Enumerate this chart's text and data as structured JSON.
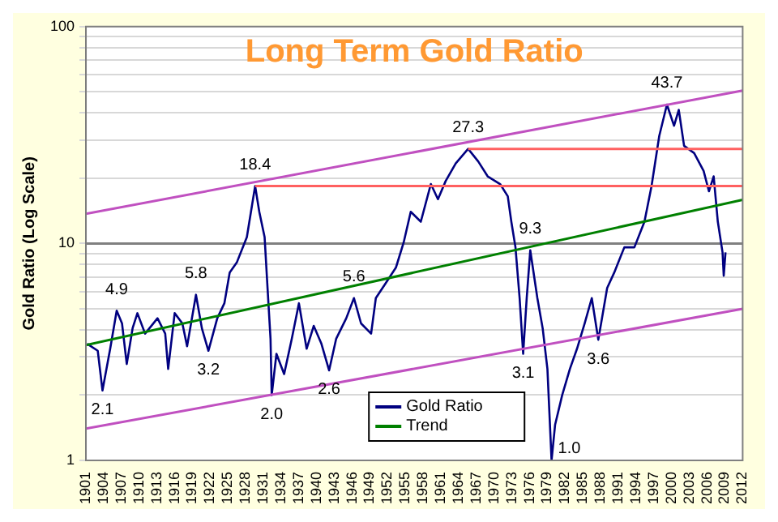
{
  "chart_data": {
    "type": "line",
    "title": "Long Term Gold Ratio",
    "ylabel": "Gold Ratio (Log Scale)",
    "log": "y",
    "xlim": [
      1901,
      2012
    ],
    "xticks": [
      1901,
      1904,
      1907,
      1910,
      1913,
      1916,
      1919,
      1922,
      1925,
      1928,
      1931,
      1934,
      1937,
      1940,
      1943,
      1946,
      1949,
      1952,
      1955,
      1958,
      1961,
      1964,
      1967,
      1970,
      1973,
      1976,
      1979,
      1982,
      1985,
      1988,
      1991,
      1994,
      1997,
      2000,
      2003,
      2006,
      2009,
      2012
    ],
    "ylim": [
      1,
      100
    ],
    "yticks": [
      1,
      {
        "value": 2,
        "label": null
      },
      {
        "value": 3,
        "label": null
      },
      {
        "value": 4,
        "label": null
      },
      {
        "value": 5,
        "label": null
      },
      {
        "value": 6,
        "label": null
      },
      {
        "value": 7,
        "label": null
      },
      {
        "value": 8,
        "label": null
      },
      {
        "value": 9,
        "label": null
      },
      10,
      {
        "value": 20,
        "label": null
      },
      {
        "value": 30,
        "label": null
      },
      {
        "value": 40,
        "label": null
      },
      {
        "value": 50,
        "label": null
      },
      {
        "value": 60,
        "label": null
      },
      {
        "value": 70,
        "label": null
      },
      {
        "value": 80,
        "label": null
      },
      {
        "value": 90,
        "label": null
      },
      100
    ],
    "grid": "y",
    "legend": "bottom",
    "marker": "none",
    "series": [
      {
        "name": "Gold Ratio",
        "color": "#000080",
        "x": [
          1901.2,
          1903,
          1903.8,
          1905.1,
          1906.2,
          1907.1,
          1907.9,
          1908.9,
          1909.7,
          1911,
          1913.1,
          1914.4,
          1914.9,
          1916,
          1917.3,
          1918.1,
          1919.6,
          1920.6,
          1921.7,
          1923.2,
          1924.4,
          1925.3,
          1926.5,
          1928.2,
          1929.6,
          1930.3,
          1931.2,
          1931.7,
          1932.2,
          1932.4,
          1933.2,
          1934.5,
          1935.8,
          1937,
          1938.3,
          1939.5,
          1940.8,
          1942.1,
          1943.3,
          1945,
          1946.3,
          1947.5,
          1949.2,
          1950,
          1951.7,
          1953.4,
          1954.7,
          1955.9,
          1957.6,
          1959.3,
          1960.5,
          1961.8,
          1963.5,
          1965.6,
          1967.3,
          1968.9,
          1971,
          1972.3,
          1972.9,
          1973.6,
          1974.3,
          1974.9,
          1975.5,
          1976.1,
          1977.3,
          1978.2,
          1979,
          1979.7,
          1980.3,
          1981.5,
          1982.8,
          1984,
          1985.3,
          1986.5,
          1987.6,
          1989.1,
          1990.3,
          1992,
          1993.7,
          1995.4,
          1996.6,
          1997.9,
          1999.2,
          2000.4,
          2001.2,
          2002.1,
          2003.8,
          2005.4,
          2006.3,
          2007.1,
          2007.8,
          2008.6,
          2008.8,
          2009.1
        ],
        "values": [
          3.45,
          3.2,
          2.1,
          3.27,
          4.9,
          4.28,
          2.78,
          4.08,
          4.77,
          3.84,
          4.52,
          3.84,
          2.64,
          4.77,
          4.28,
          3.36,
          5.8,
          4.06,
          3.2,
          4.52,
          5.3,
          7.35,
          8.17,
          10.7,
          18.4,
          14,
          10.7,
          6.2,
          3.64,
          2,
          3.1,
          2.5,
          3.64,
          5.3,
          3.27,
          4.17,
          3.45,
          2.6,
          3.64,
          4.52,
          5.6,
          4.28,
          3.84,
          5.6,
          6.58,
          7.75,
          10.1,
          14,
          12.6,
          18.8,
          16,
          19.4,
          23.4,
          27.3,
          23.9,
          20.4,
          18.8,
          16.5,
          12.6,
          9.6,
          5.6,
          3.1,
          5.6,
          9.3,
          5.6,
          4.06,
          2.64,
          1,
          1.46,
          2,
          2.64,
          3.27,
          4.28,
          5.6,
          3.6,
          6.24,
          7.35,
          9.6,
          9.6,
          12.6,
          18.4,
          31.3,
          43.7,
          34.9,
          41.3,
          28.2,
          26.1,
          21.6,
          17.4,
          20.4,
          12.6,
          9.1,
          7.1,
          9.1
        ]
      },
      {
        "name": "Trend",
        "color": "#008000",
        "x": [
          1901,
          2012
        ],
        "values": [
          3.4,
          15.9
        ]
      },
      {
        "color": "#c050c0",
        "x": [
          1901,
          2012
        ],
        "values": [
          13.7,
          50.7
        ]
      },
      {
        "color": "#c050c0",
        "x": [
          1901,
          2012
        ],
        "values": [
          1.4,
          5
        ]
      },
      {
        "color": "#ff6060",
        "x": [
          1929.6,
          2012
        ],
        "values": [
          18.4,
          18.4
        ]
      },
      {
        "color": "#ff6060",
        "x": [
          1965.6,
          2012
        ],
        "values": [
          27.3,
          27.3
        ]
      }
    ],
    "ref_lines": [
      {
        "axis": "y",
        "value": 10,
        "color": "#808080"
      }
    ],
    "annotations": [
      {
        "text": "2.1",
        "x": 1903.8,
        "y": 2.1
      },
      {
        "text": "4.9",
        "x": 1906.2,
        "y": 4.9
      },
      {
        "text": "5.8",
        "x": 1919.6,
        "y": 5.8
      },
      {
        "text": "3.2",
        "x": 1921.7,
        "y": 3.2
      },
      {
        "text": "18.4",
        "x": 1929.6,
        "y": 18.4
      },
      {
        "text": "2.0",
        "x": 1932.4,
        "y": 2
      },
      {
        "text": "2.6",
        "x": 1942.1,
        "y": 2.6
      },
      {
        "text": "5.6",
        "x": 1946.3,
        "y": 5.6
      },
      {
        "text": "27.3",
        "x": 1965.6,
        "y": 27.3
      },
      {
        "text": "3.1",
        "x": 1974.9,
        "y": 3.1
      },
      {
        "text": "9.3",
        "x": 1976.1,
        "y": 9.3
      },
      {
        "text": "1.0",
        "x": 1979.7,
        "y": 1
      },
      {
        "text": "3.6",
        "x": 1987.6,
        "y": 3.6
      },
      {
        "text": "43.7",
        "x": 1999.2,
        "y": 43.7
      }
    ]
  }
}
